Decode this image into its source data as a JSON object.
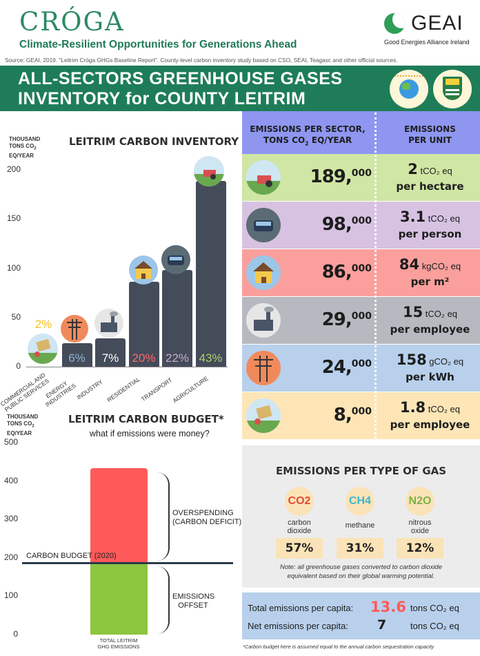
{
  "header": {
    "logo_text": "CRÓGA",
    "tagline": "Climate-Resilient Opportunities for Generations Ahead",
    "partner_logo": "GEAI",
    "partner_name": "Good Energies Alliance Ireland",
    "source": "Source: GEAI, 2019. \"Leitrim Cróga GHGs Baseline Report\". County-level carbon inventory study based on CSO, SEAI, Teagasc and other official sources."
  },
  "banner": {
    "line1": "ALL-SECTORS GREENHOUSE GASES",
    "line2": "INVENTORY for COUNTY LEITRIM",
    "bg": "#1e7d58"
  },
  "inventory": {
    "title": "LEITRIM CARBON INVENTORY",
    "y_unit_1": "THOUSAND",
    "y_unit_2": "TONS CO",
    "y_unit_sub": "2",
    "y_unit_3": "EQ/YEAR",
    "ticks": [
      "200",
      "150",
      "100",
      "50",
      "0"
    ]
  },
  "chart_data": [
    {
      "type": "bar",
      "title": "LEITRIM CARBON INVENTORY",
      "ylabel": "THOUSAND TONS CO2 EQ/YEAR",
      "ylim": [
        0,
        200
      ],
      "categories": [
        "COMMERCIAL AND PUBLIC SERVICES",
        "ENERGY INDUSTRIES",
        "INDUSTRY",
        "RESIDENTIAL",
        "TRANSPORT",
        "AGRICULTURE"
      ],
      "values": [
        8,
        24,
        29,
        86,
        98,
        189
      ],
      "percent_labels": [
        "2%",
        "6%",
        "7%",
        "20%",
        "22%",
        "43%"
      ],
      "percent_colors": [
        "#f2c21b",
        "#8fb3d9",
        "#ffffff",
        "#ff6b6b",
        "#c7a9d4",
        "#a9d26b"
      ]
    },
    {
      "type": "bar",
      "title": "LEITRIM CARBON BUDGET*",
      "ylabel": "THOUSAND TONS CO2 EQ/YEAR",
      "ylim": [
        0,
        500
      ],
      "categories": [
        "TOTAL LEITRIM GHG EMISSIONS"
      ],
      "budget_line": 184,
      "series": [
        {
          "name": "OVERSPENDING (CARBON DEFICIT)",
          "values": [
            250
          ],
          "color": "#ff5a5a"
        },
        {
          "name": "EMISSIONS OFFSET",
          "values": [
            184
          ],
          "color": "#8cc63f"
        }
      ]
    }
  ],
  "budget": {
    "title": "LEITRIM CARBON BUDGET*",
    "subtitle": "what if emissions were money?",
    "ticks": [
      "500",
      "400",
      "300",
      "200",
      "100",
      "0"
    ],
    "budget_label": "CARBON BUDGET (2020)",
    "overspend_1": "OVERSPENDING",
    "overspend_2": "(CARBON DEFICIT)",
    "offset_1": "EMISSIONS",
    "offset_2": "OFFSET",
    "bar_label_1": "TOTAL LEITRIM",
    "bar_label_2": "GHG EMISSIONS",
    "footnote": "*Carbon budget here is assumed equal to the annual carbon sequestration capacity"
  },
  "sector_table": {
    "col1_line1": "EMISSIONS PER SECTOR,",
    "col1_line2": "TONS CO",
    "col1_sub": "2",
    "col1_tail": " EQ/YEAR",
    "col2_line1": "EMISSIONS",
    "col2_line2": "PER UNIT",
    "rows": [
      {
        "num": "189,",
        "sup": "000",
        "unit_val": "2",
        "unit_a": " tCO₂ eq",
        "unit_b": "per hectare",
        "bg": "#cfe6a4",
        "icon": "tractor-icon"
      },
      {
        "num": "98,",
        "sup": "000",
        "unit_val": "3.1",
        "unit_a": " tCO₂ eq",
        "unit_b": "per person",
        "bg": "#d7c2e2",
        "icon": "car-icon"
      },
      {
        "num": "86,",
        "sup": "000",
        "unit_val": "84",
        "unit_a": " kgCO₂ eq",
        "unit_b": "per m²",
        "bg": "#fa9f9c",
        "icon": "house-icon"
      },
      {
        "num": "29,",
        "sup": "000",
        "unit_val": "15",
        "unit_a": " tCO₂ eq",
        "unit_b": "per employee",
        "bg": "#b6b9bf",
        "icon": "factory-icon"
      },
      {
        "num": "24,",
        "sup": "000",
        "unit_val": "158",
        "unit_a": " gCO₂ eq",
        "unit_b": "per kWh",
        "bg": "#b8d0ec",
        "icon": "pylon-icon"
      },
      {
        "num": "8,",
        "sup": "000",
        "unit_val": "1.8",
        "unit_a": " tCO₂ eq",
        "unit_b": "per employee",
        "bg": "#fde5b6",
        "icon": "cart-icon"
      }
    ]
  },
  "gas": {
    "title": "EMISSIONS PER TYPE OF GAS",
    "items": [
      {
        "formula": "CO2",
        "name1": "carbon",
        "name2": "dioxide",
        "pct": "57%",
        "color": "#e24a33"
      },
      {
        "formula": "CH4",
        "name1": "methane",
        "name2": "",
        "pct": "31%",
        "color": "#3ab7c9"
      },
      {
        "formula": "N2O",
        "name1": "nitrous",
        "name2": "oxide",
        "pct": "12%",
        "color": "#7cb342"
      }
    ],
    "note_1": "Note: all greenhouse gases converted to carbon dioxide",
    "note_2": "equivalent based on their global warming potential."
  },
  "capita": {
    "total_label": "Total emissions per capita:",
    "total_value": "13.6",
    "net_label": "Net emissions per capita:",
    "net_value": "7",
    "unit": "tons CO₂ eq"
  }
}
